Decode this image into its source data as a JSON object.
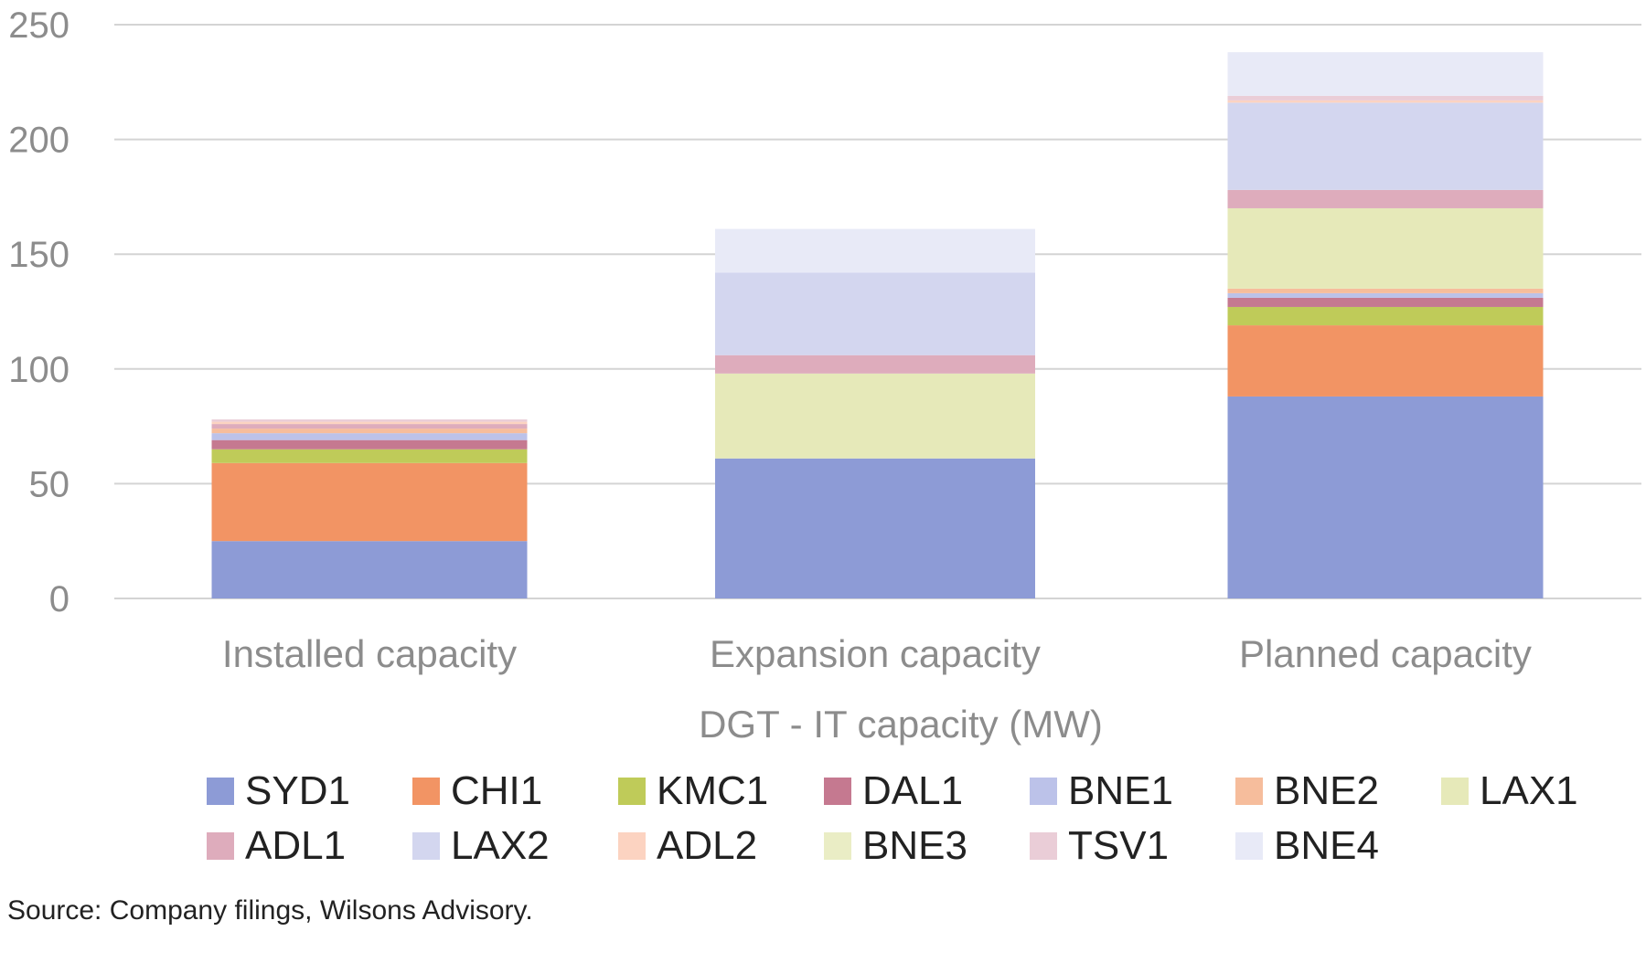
{
  "chart_data": {
    "type": "bar",
    "stacked": true,
    "title": "",
    "xlabel": "DGT - IT capacity (MW)",
    "ylabel": "",
    "ylim": [
      0,
      250
    ],
    "yticks": [
      0,
      50,
      100,
      150,
      200,
      250
    ],
    "grid": true,
    "legend_position": "bottom",
    "categories": [
      "Installed capacity",
      "Expansion capacity",
      "Planned capacity"
    ],
    "series": [
      {
        "name": "SYD1",
        "color": "#8d9bd6",
        "values": [
          25,
          61,
          88
        ]
      },
      {
        "name": "CHI1",
        "color": "#f29464",
        "values": [
          34,
          0,
          31
        ]
      },
      {
        "name": "KMC1",
        "color": "#bfcb59",
        "values": [
          6,
          0,
          8
        ]
      },
      {
        "name": "DAL1",
        "color": "#c57990",
        "values": [
          4,
          0,
          4
        ]
      },
      {
        "name": "BNE1",
        "color": "#bcc2e9",
        "values": [
          3,
          0,
          2
        ]
      },
      {
        "name": "BNE2",
        "color": "#f6bd9c",
        "values": [
          2,
          0,
          2
        ]
      },
      {
        "name": "LAX1",
        "color": "#e6e9b9",
        "values": [
          0,
          37,
          35
        ]
      },
      {
        "name": "ADL1",
        "color": "#deacbc",
        "values": [
          2,
          8,
          8
        ]
      },
      {
        "name": "LAX2",
        "color": "#d3d6ef",
        "values": [
          0,
          36,
          38
        ]
      },
      {
        "name": "ADL2",
        "color": "#fcd3c1",
        "values": [
          1,
          0,
          1
        ]
      },
      {
        "name": "BNE3",
        "color": "#eaedc5",
        "values": [
          0,
          0,
          0
        ]
      },
      {
        "name": "TSV1",
        "color": "#eacdd7",
        "values": [
          1,
          0,
          2
        ]
      },
      {
        "name": "BNE4",
        "color": "#e8eaf7",
        "values": [
          0,
          19,
          19
        ]
      }
    ]
  },
  "source_note": "Source: Company filings, Wilsons Advisory."
}
